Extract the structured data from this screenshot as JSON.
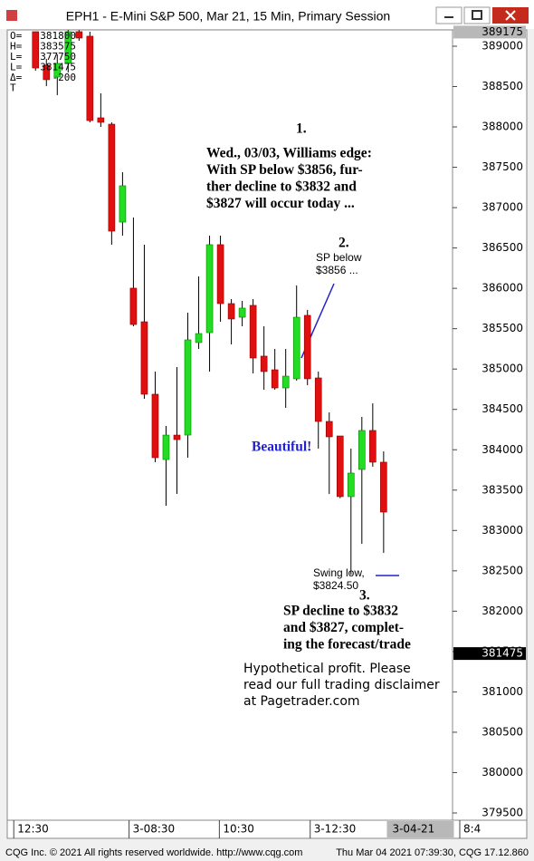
{
  "window_title": "EPH1 - E-Mini S&P 500, Mar 21, 15 Min, Primary Session",
  "footer": {
    "left": "CQG Inc. © 2021 All rights reserved worldwide. http://www.cqg.com",
    "right": "Thu Mar 04 2021 07:39:30, CQG 17.12.860"
  },
  "chart_data": {
    "type": "candlestick",
    "header": [
      {
        "key": "O=",
        "value": 381800
      },
      {
        "key": "H=",
        "value": 383575
      },
      {
        "key": "L=",
        "value": 377750
      },
      {
        "key": "L=",
        "value": 381475
      },
      {
        "key": "Δ=",
        "value": -200
      },
      {
        "key": "T"
      }
    ],
    "open": [
      389180,
      388764,
      388618,
      388787,
      389180,
      389124,
      388113,
      388034,
      386821,
      386002,
      385586,
      384688,
      383879,
      384182,
      384182,
      385328,
      385451,
      386541,
      385811,
      385642,
      385789,
      385160,
      384991,
      384766,
      384879,
      385665,
      384890,
      384351,
      384171,
      383419,
      383756,
      384239,
      383846
    ],
    "high": [
      389180,
      388843,
      388899,
      389200,
      389200,
      389180,
      388416,
      388057,
      387439,
      386878,
      386541,
      384969,
      384295,
      385025,
      385698,
      386148,
      386653,
      386653,
      385867,
      385844,
      385867,
      385530,
      385249,
      385249,
      386036,
      385733,
      384969,
      384463,
      384171,
      384014,
      384407,
      384575,
      383980
    ],
    "low": [
      388697,
      388506,
      388394,
      388674,
      389067,
      388057,
      388000,
      386541,
      386653,
      385530,
      384632,
      383846,
      383306,
      383452,
      383902,
      385249,
      384969,
      385586,
      385305,
      385530,
      384946,
      384744,
      384744,
      384519,
      384856,
      384800,
      384014,
      383452,
      383400,
      382450,
      382834,
      383790,
      382722
    ],
    "close": [
      388730,
      388585,
      388787,
      389180,
      389101,
      388079,
      388057,
      386709,
      387271,
      385552,
      384688,
      383902,
      384182,
      384126,
      385362,
      385440,
      386541,
      385811,
      385620,
      385755,
      385137,
      384969,
      384766,
      384912,
      385642,
      384879,
      384351,
      384160,
      383419,
      383711,
      384239,
      383846,
      383228
    ],
    "up_color": "#22dd22",
    "down_color": "#e01010",
    "ylim": [
      379410,
      389202
    ],
    "yticks": [
      379500,
      380000,
      380500,
      381000,
      381500,
      382000,
      382500,
      383000,
      383500,
      384000,
      384500,
      385000,
      385500,
      386000,
      386500,
      387000,
      387500,
      388000,
      388500,
      389000
    ],
    "xlim": [
      -2.6,
      40
    ],
    "xticks": [
      {
        "value": -2,
        "label": "12:30"
      },
      {
        "value": 8.6,
        "label": "3-08:30"
      },
      {
        "value": 16.9,
        "label": "10:30"
      },
      {
        "value": 25.25,
        "label": "3-12:30"
      }
    ],
    "date_marker": {
      "value": 32.3,
      "label": "3-04-21"
    },
    "next_tick": {
      "value": 39,
      "label": "8:4"
    },
    "high_marker": 389175,
    "last_price": 381475,
    "annotations": {
      "n1": "1.",
      "forecast": [
        "Wed., 03/03, Williams edge:",
        "With SP below $3856, fur-",
        "ther decline to $3832 and",
        "$3827 will occur today ..."
      ],
      "n2": "2.",
      "below": [
        "SP below",
        "$3856 ..."
      ],
      "beautiful": "Beautiful!",
      "swing": [
        "Swing low,",
        "$3824.50"
      ],
      "n3": "3.",
      "result": [
        "SP decline to $3832",
        "and $3827, complet-",
        "ing the forecast/trade"
      ],
      "disclaimer": [
        "Hypothetical profit. Please",
        "read our full trading disclaimer",
        "at Pagetrader.com"
      ]
    }
  }
}
